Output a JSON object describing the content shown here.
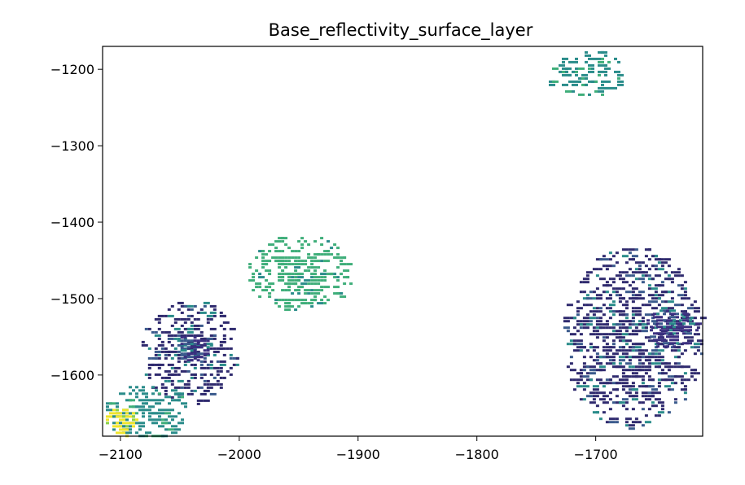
{
  "chart_data": {
    "type": "heatmap",
    "title": "Base_reflectivity_surface_layer",
    "xlabel": "",
    "ylabel": "",
    "xlim": [
      -2115,
      -1610
    ],
    "ylim": [
      -1680,
      -1170
    ],
    "xticks": [
      -2100,
      -2000,
      -1900,
      -1800,
      -1700
    ],
    "xtick_labels": [
      "−2100",
      "−2000",
      "−1900",
      "−1800",
      "−1700"
    ],
    "yticks": [
      -1200,
      -1300,
      -1400,
      -1500,
      -1600
    ],
    "ytick_labels": [
      "−1200",
      "−1300",
      "−1400",
      "−1500",
      "−1600"
    ],
    "grid": false,
    "colormap": "viridis",
    "colors": {
      "dark": "#3b2f80",
      "navy": "#2f2a6e",
      "blue": "#3a5a8c",
      "teal": "#2a8c8a",
      "green": "#3fae7a",
      "lime": "#8bd24a",
      "yellow": "#f0e52a"
    },
    "echo_regions": [
      {
        "name": "northeast small cells",
        "x": [
          -1745,
          -1675
        ],
        "y": [
          -1235,
          -1172
        ],
        "level": "teal"
      },
      {
        "name": "central scattered cells",
        "x": [
          -1995,
          -1905
        ],
        "y": [
          -1515,
          -1415
        ],
        "level": "green"
      },
      {
        "name": "western cluster",
        "x": [
          -2085,
          -2000
        ],
        "y": [
          -1640,
          -1500
        ],
        "level": "navy"
      },
      {
        "name": "western core",
        "x": [
          -2055,
          -2025
        ],
        "y": [
          -1580,
          -1545
        ],
        "level": "dark"
      },
      {
        "name": "southwest edge",
        "x": [
          -2115,
          -2040
        ],
        "y": [
          -1680,
          -1610
        ],
        "level": "teal"
      },
      {
        "name": "southwest high reflectivity",
        "x": [
          -2115,
          -2085
        ],
        "y": [
          -1680,
          -1640
        ],
        "level": "yellow"
      },
      {
        "name": "eastern cluster",
        "x": [
          -1730,
          -1610
        ],
        "y": [
          -1670,
          -1430
        ],
        "level": "navy"
      },
      {
        "name": "eastern core",
        "x": [
          -1660,
          -1615
        ],
        "y": [
          -1565,
          -1510
        ],
        "level": "dark"
      }
    ]
  }
}
